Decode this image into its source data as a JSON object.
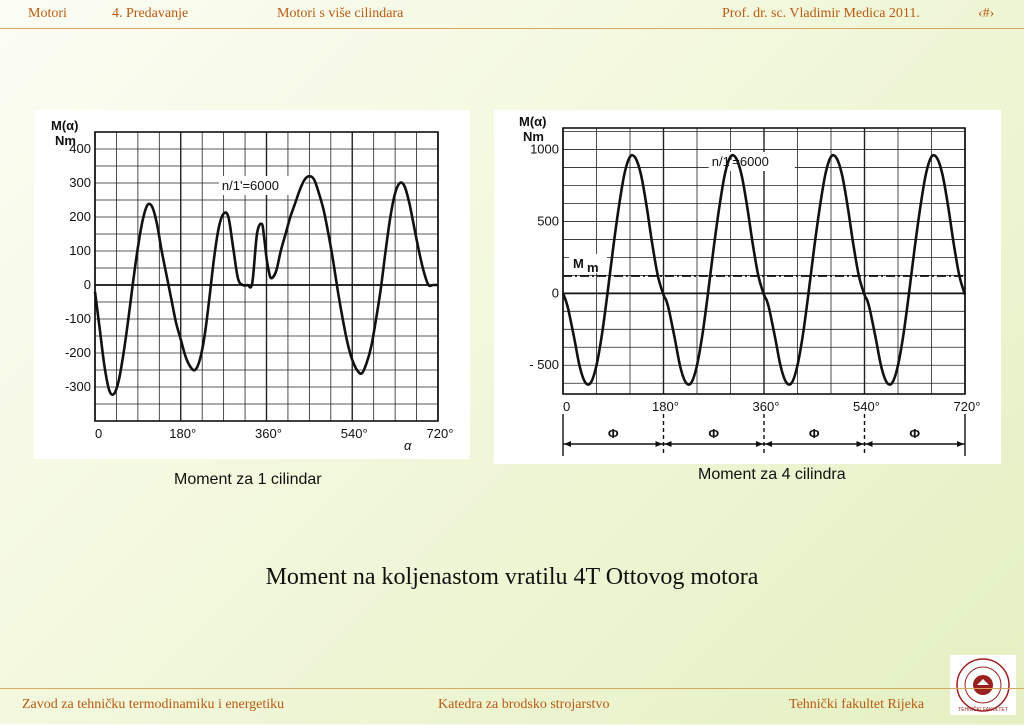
{
  "header": {
    "course": "Motori",
    "lecture": "4. Predavanje",
    "topic": "Motori s više cilindara",
    "author": "Prof. dr. sc. Vladimir Medica   2011.",
    "page_marker": "‹#›"
  },
  "footer": {
    "left": "Zavod za tehničku termodinamiku i energetiku",
    "center": "Katedra za brodsko strojarstvo",
    "right": "Tehnički fakultet Rijeka"
  },
  "slide_title": "Moment na koljenastom vratilu 4T Ottovog motora",
  "colors": {
    "accent": "#b85a10",
    "rule": "#d8a860",
    "background": "#eef6d6"
  },
  "logo": {
    "icon": "faculty-seal-icon",
    "text": "TEHNIČKI FAKULTET"
  },
  "chart_data": [
    {
      "type": "line",
      "caption": "Moment za 1 cilindar",
      "ylabel_line1": "M(α)",
      "ylabel_line2": "Nm",
      "xlabel": "α",
      "annotation": "n/1'=6000",
      "xlim": [
        0,
        720
      ],
      "ylim": [
        -400,
        450
      ],
      "x_ticks": [
        0,
        180,
        360,
        540,
        720
      ],
      "x_tick_labels": [
        "0",
        "180°",
        "360°",
        "540°",
        "720°"
      ],
      "y_ticks": [
        400,
        300,
        200,
        100,
        0,
        -100,
        -200,
        -300
      ],
      "y_tick_labels": [
        "400",
        "300",
        "200",
        "100",
        "0",
        "-100",
        "-200",
        "-300"
      ],
      "grid": true,
      "series": [
        {
          "x": [
            0,
            10,
            20,
            30,
            40,
            50,
            60,
            70,
            80,
            90,
            100,
            110,
            120,
            130,
            140,
            150,
            160,
            170,
            180,
            190,
            200,
            210,
            220,
            230,
            240,
            250,
            260,
            270,
            280,
            290,
            300,
            310,
            320,
            330,
            340,
            350,
            355,
            360,
            365,
            370,
            380,
            390,
            400,
            410,
            420,
            430,
            440,
            450,
            460,
            470,
            480,
            490,
            500,
            510,
            520,
            530,
            540,
            550,
            560,
            570,
            580,
            590,
            600,
            610,
            620,
            630,
            640,
            650,
            660,
            670,
            680,
            690,
            700,
            710,
            720
          ],
          "y": [
            -20,
            -130,
            -240,
            -310,
            -320,
            -280,
            -200,
            -100,
            10,
            110,
            190,
            235,
            230,
            180,
            100,
            30,
            -40,
            -110,
            -160,
            -210,
            -240,
            -250,
            -220,
            -150,
            -40,
            80,
            170,
            210,
            200,
            110,
            20,
            0,
            0,
            5,
            150,
            180,
            140,
            80,
            40,
            20,
            40,
            100,
            150,
            200,
            240,
            280,
            310,
            320,
            310,
            270,
            220,
            150,
            70,
            -20,
            -100,
            -170,
            -220,
            -250,
            -260,
            -230,
            -180,
            -100,
            -10,
            100,
            200,
            270,
            300,
            290,
            240,
            170,
            100,
            40,
            0,
            0,
            0
          ]
        }
      ]
    },
    {
      "type": "line",
      "caption": "Moment za 4 cilindra",
      "ylabel_line1": "M(α)",
      "ylabel_line2": "Nm",
      "annotation": "n/1'=6000",
      "mean_label": "M",
      "mean_label_sub": "m",
      "mean_value": 120,
      "period_symbol": "Φ",
      "period_count": 4,
      "xlim": [
        0,
        720
      ],
      "ylim": [
        -700,
        1150
      ],
      "x_ticks": [
        0,
        180,
        360,
        540,
        720
      ],
      "x_tick_labels": [
        "0",
        "180°",
        "360°",
        "540°",
        "720°"
      ],
      "y_ticks": [
        1000,
        500,
        0,
        -500
      ],
      "y_tick_labels": [
        "1000",
        "500",
        "0",
        "- 500"
      ],
      "grid": true,
      "series": [
        {
          "x": [
            0,
            5,
            10,
            20,
            30,
            40,
            50,
            60,
            70,
            80,
            90,
            100,
            110,
            120,
            130,
            140,
            150,
            160,
            170,
            180
          ],
          "y": [
            0,
            -50,
            -120,
            -310,
            -510,
            -620,
            -620,
            -500,
            -280,
            10,
            320,
            600,
            830,
            950,
            940,
            820,
            600,
            340,
            120,
            -10
          ],
          "repeat_period": 180
        }
      ]
    }
  ]
}
